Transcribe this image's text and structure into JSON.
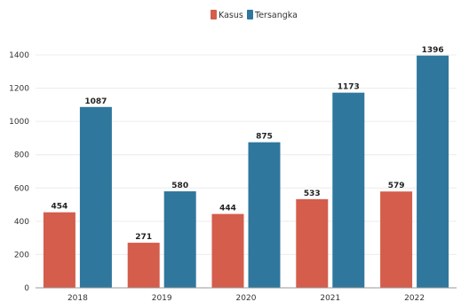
{
  "chart_data": {
    "type": "bar",
    "title": "",
    "xlabel": "",
    "ylabel": "",
    "categories": [
      "2018",
      "2019",
      "2020",
      "2021",
      "2022"
    ],
    "series": [
      {
        "name": "Kasus",
        "color": "#d45d4c",
        "values": [
          454,
          271,
          444,
          533,
          579
        ]
      },
      {
        "name": "Tersangka",
        "color": "#2f779c",
        "values": [
          1087,
          580,
          875,
          1173,
          1396
        ]
      }
    ],
    "ylim": [
      0,
      1400
    ],
    "yticks": [
      0,
      200,
      400,
      600,
      800,
      1000,
      1200,
      1400
    ],
    "grid": true,
    "legend_position": "top-center",
    "data_labels": true
  }
}
